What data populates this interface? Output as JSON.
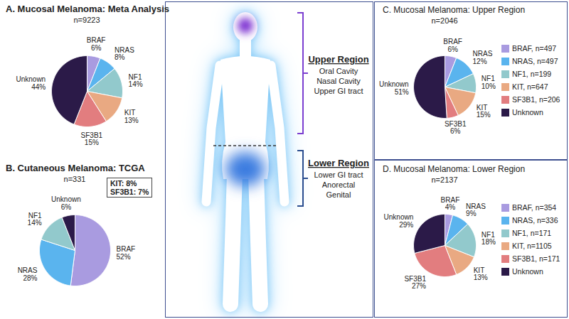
{
  "chart_data": [
    {
      "type": "pie",
      "title": "A. Mucosal Melanoma: Meta Analysis",
      "subtitle": "n=9223",
      "categories": [
        "BRAF",
        "NRAS",
        "NF1",
        "KIT",
        "SF3B1",
        "Unknown"
      ],
      "values": [
        6,
        8,
        14,
        13,
        15,
        44
      ],
      "value_labels": [
        "6%",
        "8%",
        "14%",
        "13%",
        "15%",
        "44%"
      ],
      "colors": [
        "#a99be0",
        "#5ab4ee",
        "#92c9cc",
        "#e9a982",
        "#e27d7f",
        "#2b1a48"
      ],
      "data_labels": true
    },
    {
      "type": "pie",
      "title": "B. Cutaneous Melanoma: TCGA",
      "subtitle": "n=331",
      "categories": [
        "BRAF",
        "NRAS",
        "NF1",
        "Unknown"
      ],
      "values": [
        52,
        28,
        14,
        6
      ],
      "value_labels": [
        "52%",
        "28%",
        "14%",
        "6%"
      ],
      "colors": [
        "#a99be0",
        "#5ab4ee",
        "#92c9cc",
        "#2b1a48"
      ],
      "data_labels": true,
      "annotations": [
        "KIT: 8%",
        "SF3B1: 7%"
      ]
    },
    {
      "type": "pie",
      "title": "C. Mucosal Melanoma: Upper Region",
      "subtitle": "n=2046",
      "categories": [
        "BRAF",
        "NRAS",
        "NF1",
        "KIT",
        "SF3B1",
        "Unknown"
      ],
      "values": [
        6,
        12,
        10,
        15,
        6,
        51
      ],
      "value_labels": [
        "6%",
        "12%",
        "10%",
        "15%",
        "6%",
        "51%"
      ],
      "colors": [
        "#a99be0",
        "#5ab4ee",
        "#92c9cc",
        "#e9a982",
        "#e27d7f",
        "#2b1a48"
      ],
      "data_labels": true,
      "legend": "right",
      "legend_labels": [
        "BRAF, n=497",
        "NRAS, n=497",
        "NF1, n=199",
        "KIT, n=647",
        "SF3B1, n=206",
        "Unknown"
      ]
    },
    {
      "type": "pie",
      "title": "D. Mucosal Melanoma: Lower Region",
      "subtitle": "n=2137",
      "categories": [
        "BRAF",
        "NRAS",
        "NF1",
        "KIT",
        "SF3B1",
        "Unknown"
      ],
      "values": [
        4,
        9,
        18,
        13,
        27,
        29
      ],
      "value_labels": [
        "4%",
        "9%",
        "18%",
        "13%",
        "27%",
        "29%"
      ],
      "colors": [
        "#a99be0",
        "#5ab4ee",
        "#92c9cc",
        "#e9a982",
        "#e27d7f",
        "#2b1a48"
      ],
      "data_labels": true,
      "legend": "right",
      "legend_labels": [
        "BRAF, n=354",
        "NRAS, n=336",
        "NF1, n=171",
        "KIT, n=1105",
        "SF3B1, n=171",
        "Unknown"
      ]
    }
  ],
  "diagram": {
    "regions": [
      {
        "title": "Upper Region",
        "items": [
          "Oral Cavity",
          "Nasal Cavity",
          "Upper GI tract"
        ]
      },
      {
        "title": "Lower Region",
        "items": [
          "Lower GI tract",
          "Anorectal",
          "Genital"
        ]
      }
    ]
  }
}
